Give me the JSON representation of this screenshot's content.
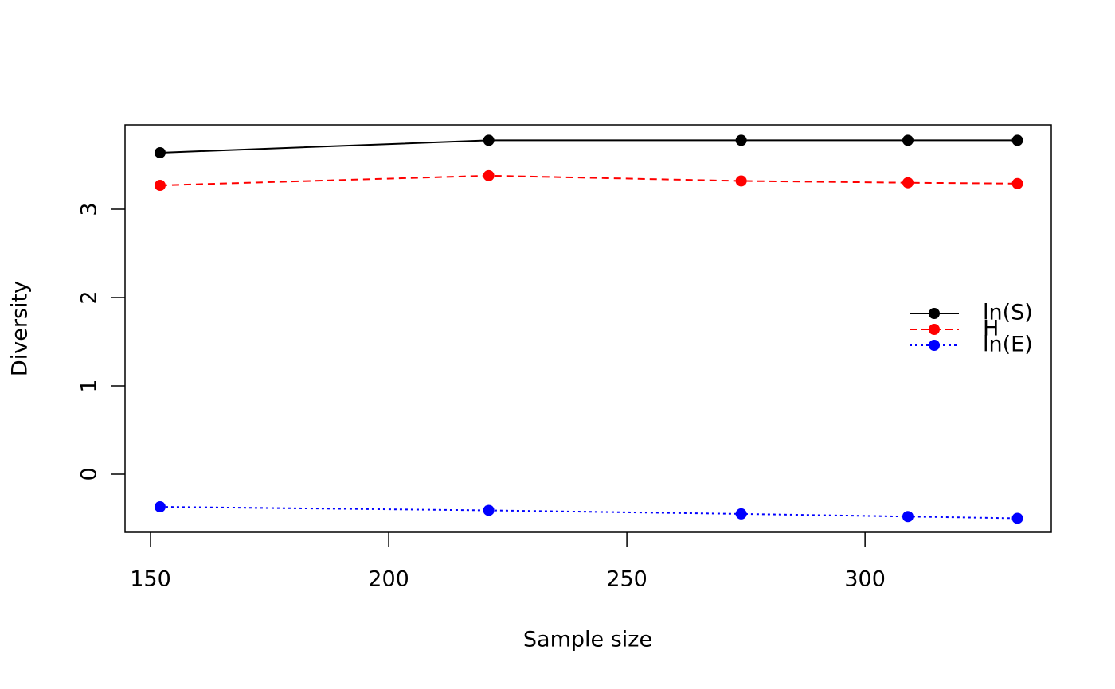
{
  "chart_data": {
    "type": "line",
    "x_label": "Sample size",
    "y_label": "Diversity",
    "x": [
      152,
      221,
      274,
      309,
      332
    ],
    "series": [
      {
        "name": "ln(S)",
        "color": "#000000",
        "line_style": "solid",
        "values": [
          3.64,
          3.78,
          3.78,
          3.78,
          3.78
        ]
      },
      {
        "name": "H",
        "color": "#ff0000",
        "line_style": "dashed",
        "values": [
          3.27,
          3.38,
          3.32,
          3.3,
          3.29
        ]
      },
      {
        "name": "ln(E)",
        "color": "#0000ff",
        "line_style": "dotted",
        "values": [
          -0.37,
          -0.41,
          -0.45,
          -0.48,
          -0.5
        ]
      }
    ],
    "xlim": [
      144.65,
      339.1
    ],
    "ylim": [
      -0.658,
      3.955
    ],
    "xticks": [
      150,
      200,
      250,
      300
    ],
    "yticks": [
      0,
      1,
      2,
      3
    ],
    "legend": "right",
    "grid": false
  }
}
